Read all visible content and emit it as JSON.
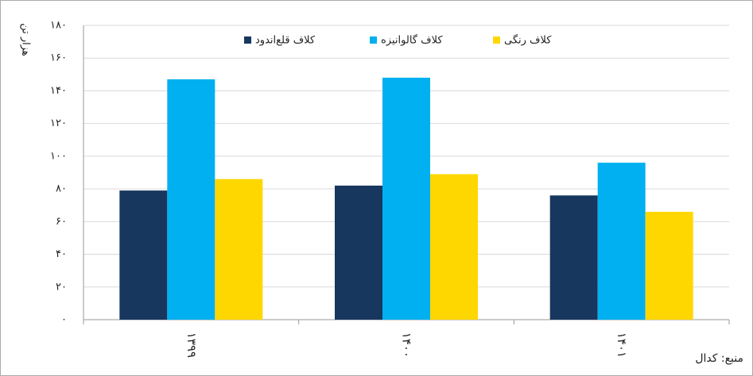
{
  "chart_data": {
    "type": "bar",
    "y_label": "هزار تن",
    "source": "منبع: کدال",
    "categories": [
      "۱۳۹۹",
      "۱۴۰۰",
      "۱۴۰۱"
    ],
    "series": [
      {
        "name": "کلاف قلع‌اندود",
        "color": "#17375e",
        "values": [
          79,
          82,
          76
        ]
      },
      {
        "name": "کلاف گالوانیزه",
        "color": "#00b0f0",
        "values": [
          147,
          148,
          96
        ]
      },
      {
        "name": "کلاف رنگی",
        "color": "#ffd700",
        "values": [
          86,
          89,
          66
        ]
      }
    ],
    "ylim": [
      0,
      180
    ],
    "yticks": [
      {
        "value": 0,
        "label": "۰"
      },
      {
        "value": 20,
        "label": "۲۰"
      },
      {
        "value": 40,
        "label": "۴۰"
      },
      {
        "value": 60,
        "label": "۶۰"
      },
      {
        "value": 80,
        "label": "۸۰"
      },
      {
        "value": 100,
        "label": "۱۰۰"
      },
      {
        "value": 120,
        "label": "۱۲۰"
      },
      {
        "value": 140,
        "label": "۱۴۰"
      },
      {
        "value": 160,
        "label": "۱۶۰"
      },
      {
        "value": 180,
        "label": "۱۸۰"
      }
    ],
    "grid": true
  }
}
